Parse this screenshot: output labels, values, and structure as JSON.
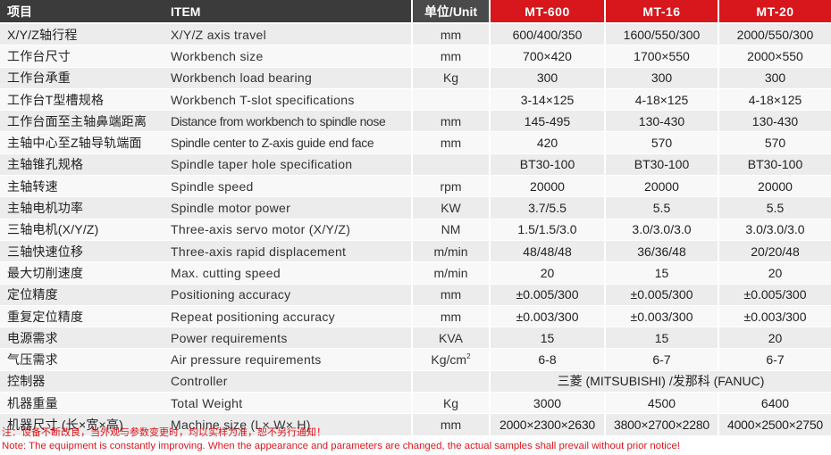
{
  "header": {
    "col_cn": "项目",
    "col_item": "ITEM",
    "col_unit": "单位/Unit",
    "models": [
      "MT-600",
      "MT-16",
      "MT-20"
    ]
  },
  "rows": [
    {
      "cn": "X/Y/Z轴行程",
      "en": "X/Y/Z axis travel",
      "unit": "mm",
      "v": [
        "600/400/350",
        "1600/550/300",
        "2000/550/300"
      ]
    },
    {
      "cn": "工作台尺寸",
      "en": "Workbench size",
      "unit": "mm",
      "v": [
        "700×420",
        "1700×550",
        "2000×550"
      ]
    },
    {
      "cn": "工作台承重",
      "en": "Workbench load bearing",
      "unit": "Kg",
      "v": [
        "300",
        "300",
        "300"
      ]
    },
    {
      "cn": "工作台T型槽规格",
      "en": "Workbench T-slot specifications",
      "unit": "",
      "v": [
        "3-14×125",
        "4-18×125",
        "4-18×125"
      ]
    },
    {
      "cn": "工作台面至主轴鼻端距离",
      "en": "Distance from workbench to spindle nose",
      "unit": "mm",
      "v": [
        "145-495",
        "130-430",
        "130-430"
      ]
    },
    {
      "cn": "主轴中心至Z轴导轨端面",
      "en": "Spindle center to Z-axis guide end face",
      "unit": "mm",
      "v": [
        "420",
        "570",
        "570"
      ]
    },
    {
      "cn": "主轴锥孔规格",
      "en": "Spindle taper hole specification",
      "unit": "",
      "v": [
        "BT30-100",
        "BT30-100",
        "BT30-100"
      ]
    },
    {
      "cn": "主轴转速",
      "en": "Spindle speed",
      "unit": "rpm",
      "v": [
        "20000",
        "20000",
        "20000"
      ]
    },
    {
      "cn": "主轴电机功率",
      "en": "Spindle motor power",
      "unit": "KW",
      "v": [
        "3.7/5.5",
        "5.5",
        "5.5"
      ]
    },
    {
      "cn": "三轴电机(X/Y/Z)",
      "en": "Three-axis servo motor (X/Y/Z)",
      "unit": "NM",
      "v": [
        "1.5/1.5/3.0",
        "3.0/3.0/3.0",
        "3.0/3.0/3.0"
      ]
    },
    {
      "cn": "三轴快速位移",
      "en": "Three-axis rapid displacement",
      "unit": "m/min",
      "v": [
        "48/48/48",
        "36/36/48",
        "20/20/48"
      ]
    },
    {
      "cn": "最大切削速度",
      "en": "Max. cutting speed",
      "unit": "m/min",
      "v": [
        "20",
        "15",
        "20"
      ]
    },
    {
      "cn": "定位精度",
      "en": "Positioning accuracy",
      "unit": "mm",
      "v": [
        "±0.005/300",
        "±0.005/300",
        "±0.005/300"
      ]
    },
    {
      "cn": "重复定位精度",
      "en": "Repeat positioning accuracy",
      "unit": "mm",
      "v": [
        "±0.003/300",
        "±0.003/300",
        "±0.003/300"
      ]
    },
    {
      "cn": "电源需求",
      "en": "Power requirements",
      "unit": "KVA",
      "v": [
        "15",
        "15",
        "20"
      ]
    },
    {
      "cn": "气压需求",
      "en": "Air pressure requirements",
      "unit": "Kg/cm",
      "unit_sup": "2",
      "v": [
        "6-8",
        "6-7",
        "6-7"
      ]
    },
    {
      "cn": "控制器",
      "en": "Controller",
      "unit": "",
      "merged": "三菱 (MITSUBISHI) /发那科 (FANUC)"
    },
    {
      "cn": "机器重量",
      "en": "Total Weight",
      "unit": "Kg",
      "v": [
        "3000",
        "4500",
        "6400"
      ]
    },
    {
      "cn": "机器尺寸 (长×宽×高)",
      "en": "Machine size (L× W× H)",
      "unit": "mm",
      "v": [
        "2000×2300×2630",
        "3800×2700×2280",
        "4000×2500×2750"
      ]
    }
  ],
  "notes": {
    "cn": "注：设备不断改良，当外观与参数变更时，均以实样为准，恕不另行通知！",
    "en": "Note: The equipment is constantly improving. When the appearance and parameters are changed, the actual samples shall prevail without prior notice!"
  },
  "colors": {
    "header_dark": "#3b3b3b",
    "header_model": "#d7171b",
    "row_odd": "#ececec",
    "row_even": "#f8f8f8",
    "note_red": "#e0141b"
  }
}
